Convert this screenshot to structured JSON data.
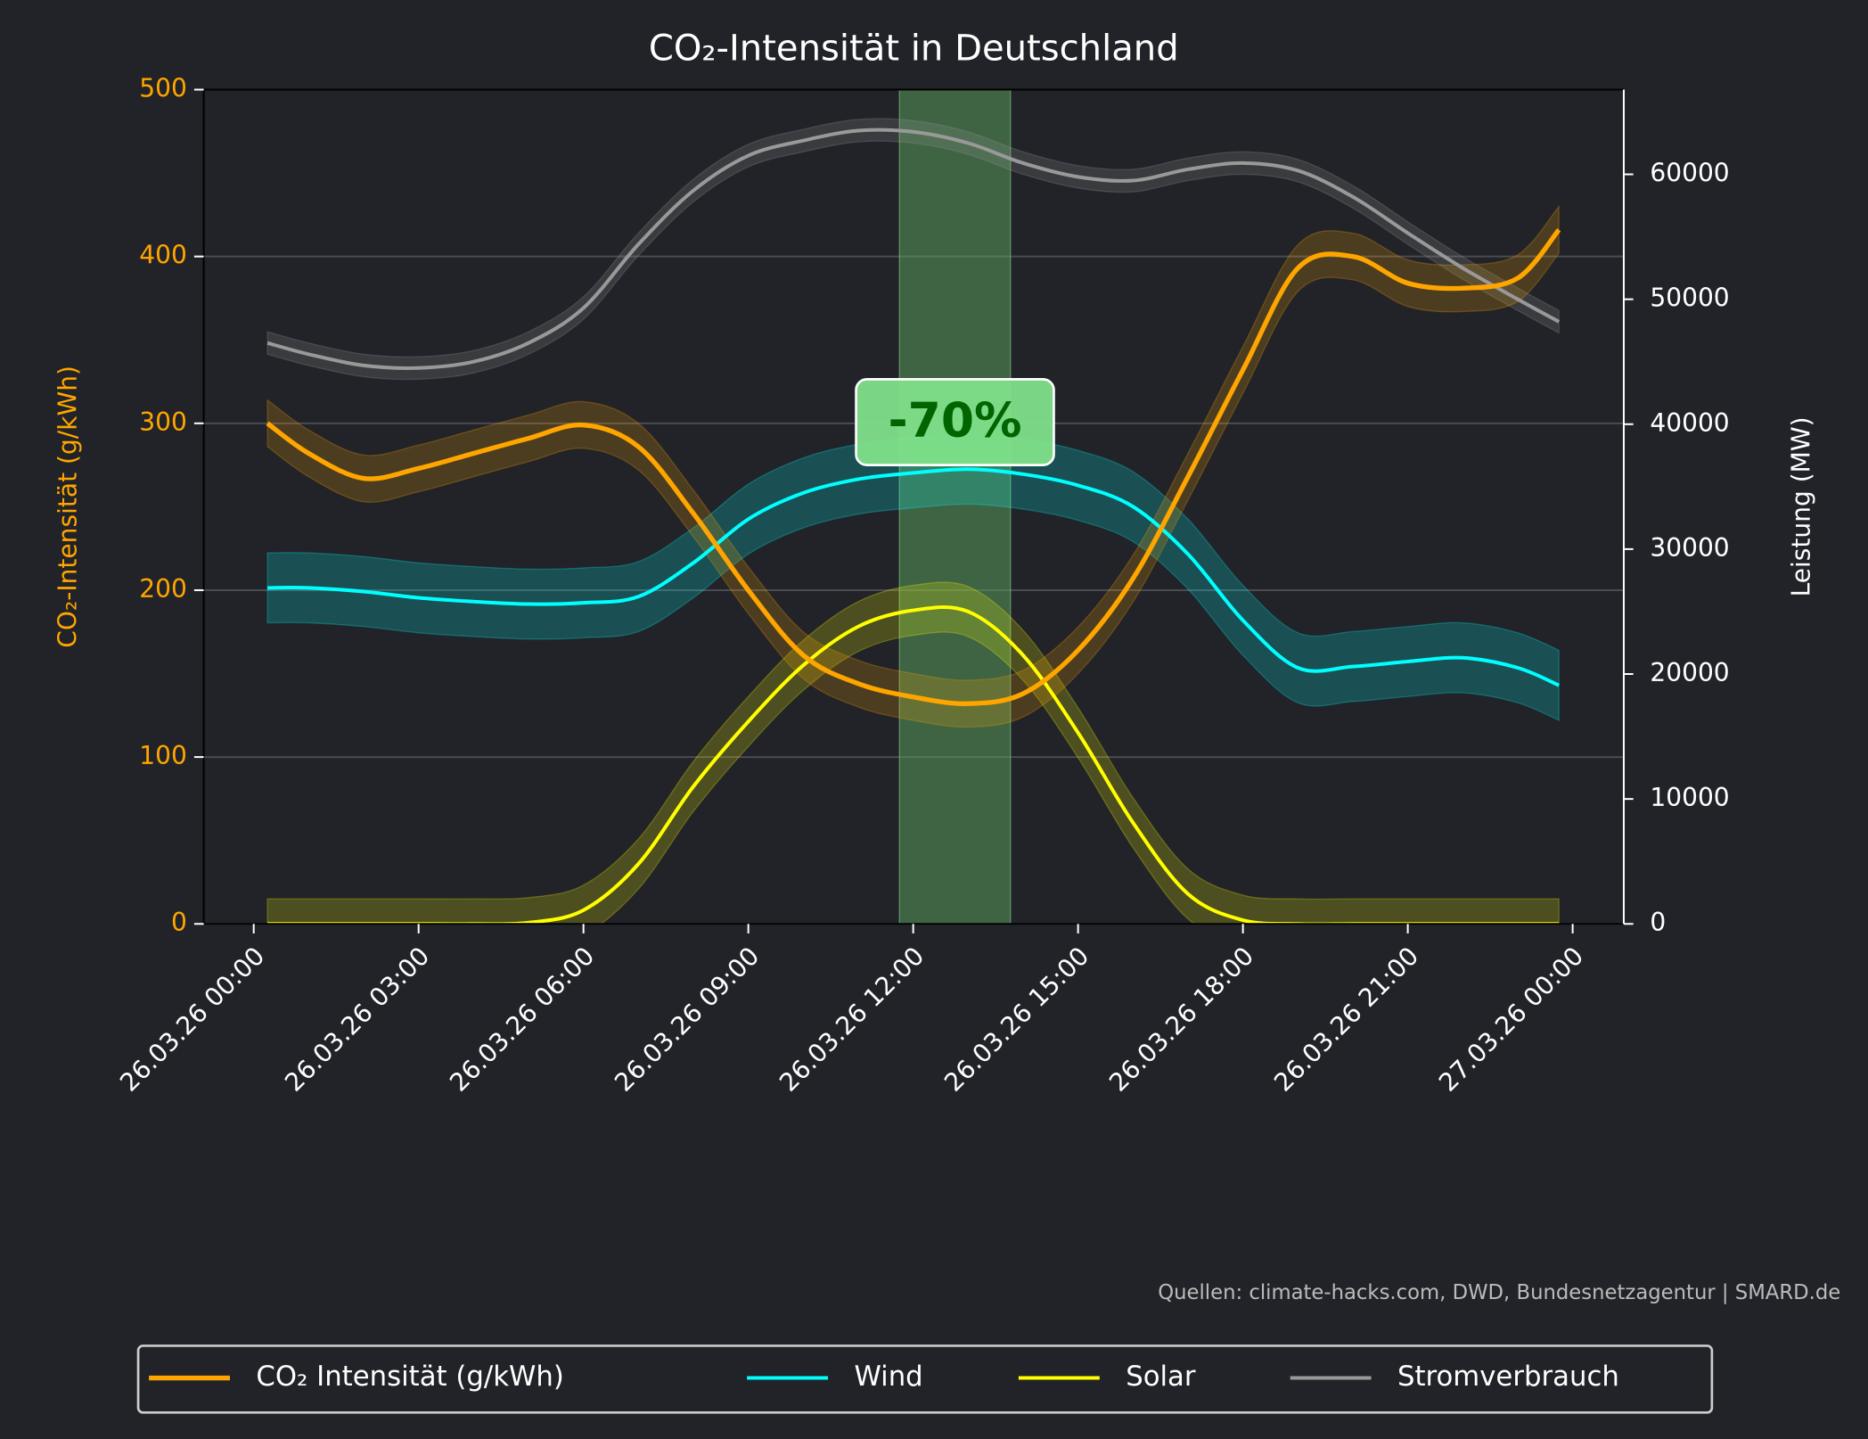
{
  "chart_data": {
    "type": "line",
    "title": "CO₂-Intensität in Deutschland",
    "ylabel": "CO₂-Intensität (g/kWh)",
    "y2label": "Leistung (MW)",
    "source": "Quellen: climate-hacks.com, DWD, Bundesnetzagentur | SMARD.de",
    "annotation": "-70%",
    "highlight": [
      11.75,
      13.77
    ],
    "x": [
      0.25,
      1,
      2,
      3,
      4,
      5,
      6,
      7,
      8,
      9,
      10,
      11,
      12,
      13,
      14,
      15,
      16,
      17,
      18,
      19,
      20,
      21,
      22,
      23,
      23.75
    ],
    "xlim": [
      -0.91,
      24.93
    ],
    "xticks": [
      {
        "value": 0,
        "label": "26.03.26 00:00"
      },
      {
        "value": 3,
        "label": "26.03.26 03:00"
      },
      {
        "value": 6,
        "label": "26.03.26 06:00"
      },
      {
        "value": 9,
        "label": "26.03.26 09:00"
      },
      {
        "value": 12,
        "label": "26.03.26 12:00"
      },
      {
        "value": 15,
        "label": "26.03.26 15:00"
      },
      {
        "value": 18,
        "label": "26.03.26 18:00"
      },
      {
        "value": 21,
        "label": "26.03.26 21:00"
      },
      {
        "value": 24,
        "label": "27.03.26 00:00"
      }
    ],
    "ylim": [
      0,
      500
    ],
    "yticks": [
      0,
      100,
      200,
      300,
      400,
      500
    ],
    "y2lim": [
      0,
      66780
    ],
    "y2ticks": [
      0,
      10000,
      20000,
      30000,
      40000,
      50000,
      60000
    ],
    "grid": true,
    "legend": "bottom",
    "series": [
      {
        "name": "CO₂ Intensität (g/kWh)",
        "color": "#ffa500",
        "axis": "y",
        "band": 14,
        "values": [
          300,
          282,
          267,
          273,
          282,
          291,
          299,
          286,
          246,
          200,
          161,
          144,
          136,
          132,
          138,
          164,
          207,
          268,
          332,
          393,
          400,
          384,
          381,
          387,
          416
        ]
      },
      {
        "name": "Wind",
        "color": "#00ffff",
        "axis": "y2",
        "band": 2800,
        "values": [
          26900,
          26900,
          26600,
          26100,
          25800,
          25600,
          25700,
          26200,
          28900,
          32400,
          34500,
          35600,
          36100,
          36400,
          36000,
          35100,
          33400,
          29600,
          24300,
          20500,
          20600,
          21000,
          21300,
          20500,
          19100
        ]
      },
      {
        "name": "Solar",
        "color": "#ffff00",
        "axis": "y2",
        "band": 2000,
        "values": [
          0,
          0,
          0,
          0,
          0,
          100,
          1100,
          4800,
          11000,
          16200,
          20700,
          23800,
          25100,
          25000,
          21500,
          15300,
          8100,
          2400,
          300,
          0,
          0,
          0,
          0,
          0,
          0
        ]
      },
      {
        "name": "Stromverbrauch",
        "color": "#999999",
        "axis": "y2",
        "band": 900,
        "values": [
          46500,
          45600,
          44700,
          44500,
          45000,
          46500,
          49300,
          54400,
          58700,
          61500,
          62700,
          63500,
          63400,
          62500,
          60900,
          59800,
          59500,
          60400,
          60900,
          60300,
          58200,
          55300,
          52500,
          50000,
          48200
        ]
      }
    ]
  }
}
